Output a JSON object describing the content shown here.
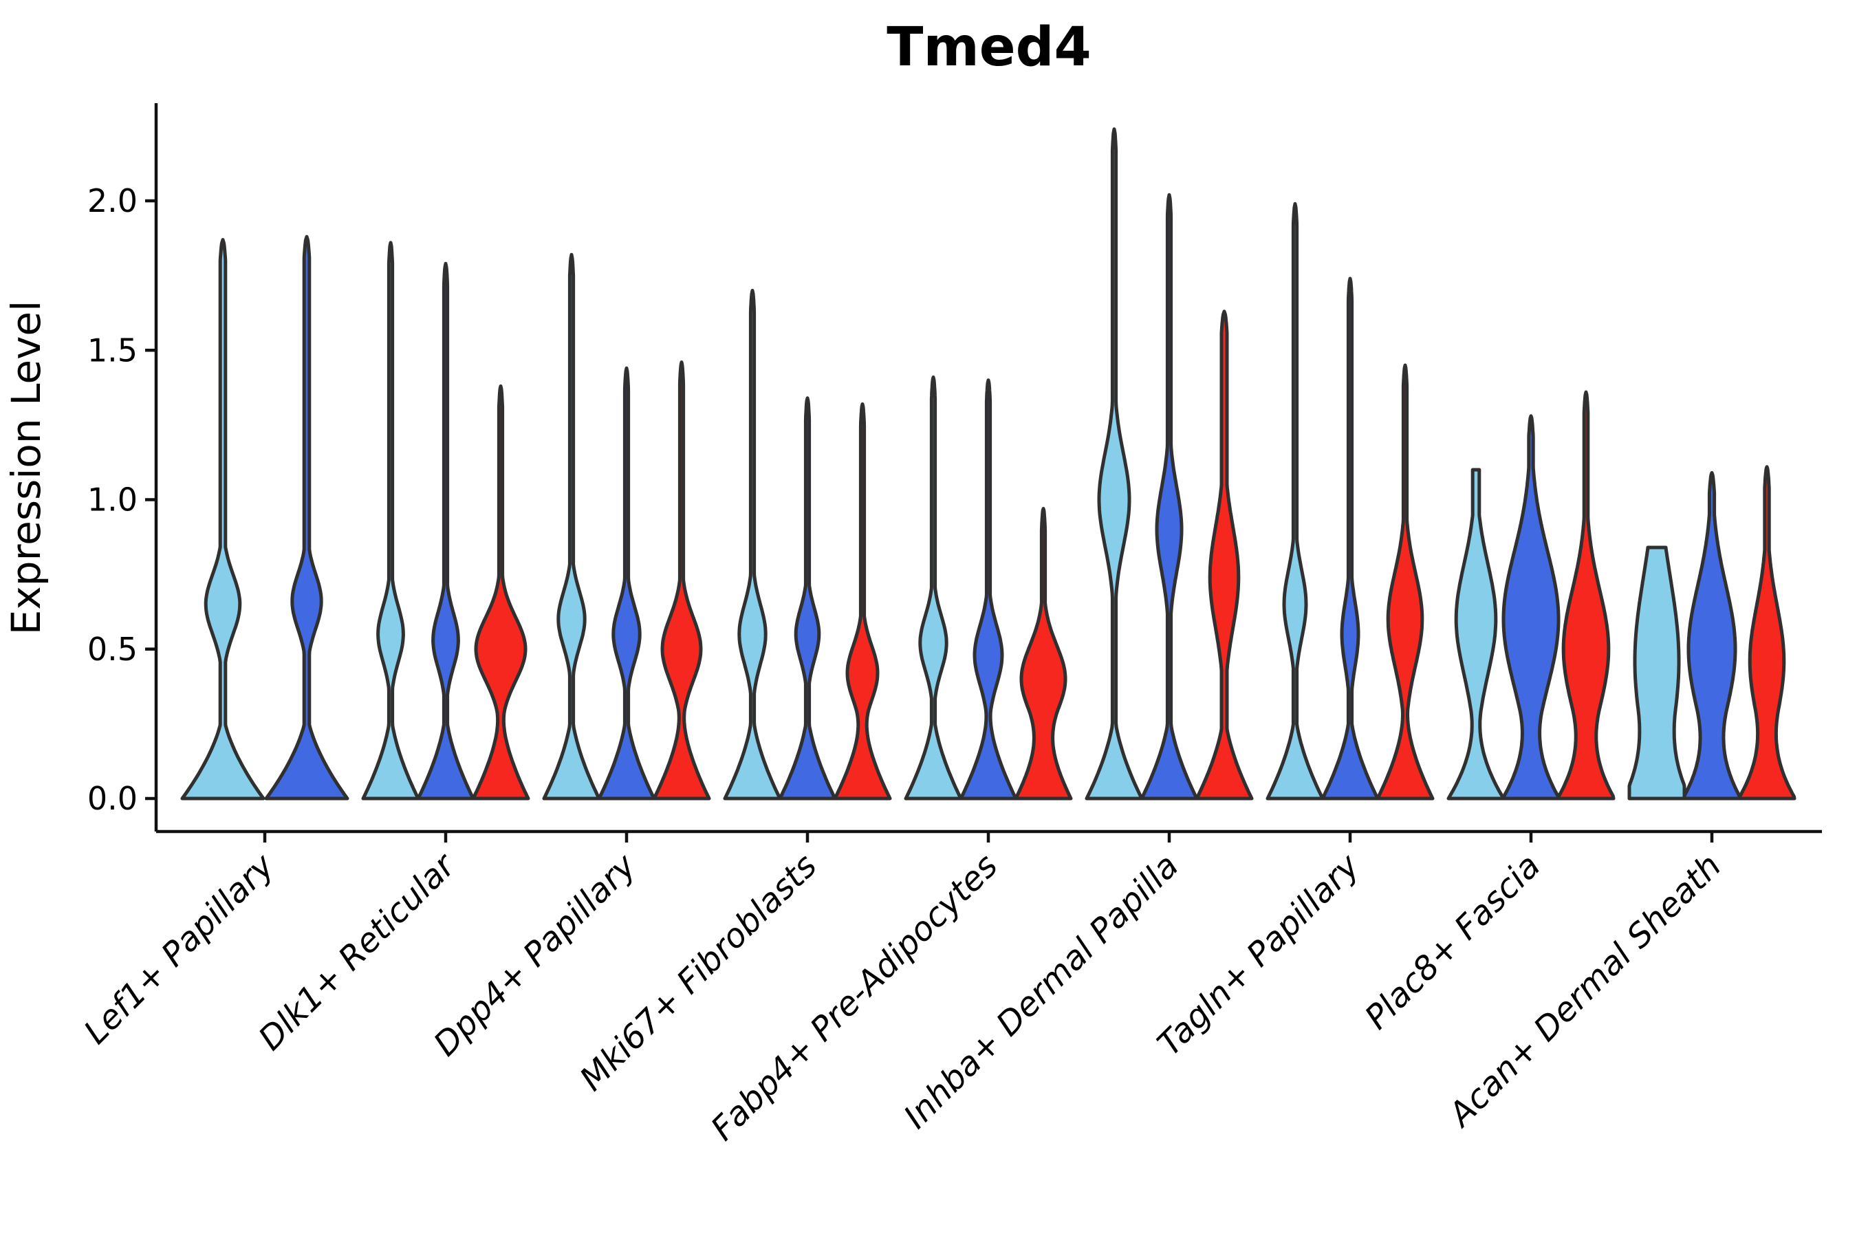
{
  "palette": {
    "light_blue": "#87CEEB",
    "royal_blue": "#4169E1",
    "red": "#F5271F",
    "outline": "#303030",
    "axis": "#111111",
    "text": "#000000"
  },
  "chart_data": {
    "type": "violin",
    "title": "Tmed4",
    "ylabel": "Expression Level",
    "xlabel": "",
    "ylim": [
      -0.11,
      2.43
    ],
    "grid": false,
    "legend": "none",
    "x_label_rotation": 45,
    "yticks": [
      {
        "label": "0.0",
        "value": 0.0
      },
      {
        "label": "0.5",
        "value": 0.5
      },
      {
        "label": "1.0",
        "value": 1.0
      },
      {
        "label": "1.5",
        "value": 1.5
      },
      {
        "label": "2.0",
        "value": 2.0
      }
    ],
    "categories": [
      "Lef1+ Papillary",
      "Dlk1+ Reticular",
      "Dpp4+ Papillary",
      "Mki67+ Fibroblasts",
      "Fabp4+ Pre-Adipocytes",
      "Inhba+ Dermal Papilla",
      "Tagln+ Papillary",
      "Plac8+ Fascia",
      "Acan+ Dermal Sheath"
    ],
    "series_note": "three unlabeled sample series per category, colored light-blue / royal-blue / red; all violins share a zero-anchored base",
    "violins": [
      {
        "cat": 0,
        "slot": 0,
        "color": "light_blue",
        "max": 1.87,
        "c": 0.65,
        "s": 0.14,
        "a": 0.42
      },
      {
        "cat": 0,
        "slot": 1,
        "color": "royal_blue",
        "max": 1.88,
        "c": 0.66,
        "s": 0.13,
        "a": 0.36
      },
      {
        "cat": 1,
        "slot": 0,
        "color": "light_blue",
        "max": 1.86,
        "c": 0.55,
        "s": 0.13,
        "a": 0.46
      },
      {
        "cat": 1,
        "slot": 1,
        "color": "royal_blue",
        "max": 1.79,
        "c": 0.53,
        "s": 0.13,
        "a": 0.46
      },
      {
        "cat": 1,
        "slot": 2,
        "color": "red",
        "max": 1.38,
        "c": 0.5,
        "s": 0.15,
        "a": 0.9
      },
      {
        "cat": 2,
        "slot": 0,
        "color": "light_blue",
        "max": 1.82,
        "c": 0.6,
        "s": 0.13,
        "a": 0.48
      },
      {
        "cat": 2,
        "slot": 1,
        "color": "royal_blue",
        "max": 1.44,
        "c": 0.55,
        "s": 0.13,
        "a": 0.48
      },
      {
        "cat": 2,
        "slot": 2,
        "color": "red",
        "max": 1.46,
        "c": 0.5,
        "s": 0.15,
        "a": 0.7
      },
      {
        "cat": 3,
        "slot": 0,
        "color": "light_blue",
        "max": 1.7,
        "c": 0.55,
        "s": 0.14,
        "a": 0.48
      },
      {
        "cat": 3,
        "slot": 1,
        "color": "royal_blue",
        "max": 1.34,
        "c": 0.55,
        "s": 0.12,
        "a": 0.42
      },
      {
        "cat": 3,
        "slot": 2,
        "color": "red",
        "max": 1.32,
        "c": 0.42,
        "s": 0.13,
        "a": 0.55
      },
      {
        "cat": 4,
        "slot": 0,
        "color": "light_blue",
        "max": 1.41,
        "c": 0.52,
        "s": 0.13,
        "a": 0.48
      },
      {
        "cat": 4,
        "slot": 1,
        "color": "royal_blue",
        "max": 1.4,
        "c": 0.48,
        "s": 0.14,
        "a": 0.5
      },
      {
        "cat": 4,
        "slot": 2,
        "color": "red",
        "max": 0.97,
        "c": 0.4,
        "s": 0.16,
        "a": 0.8
      },
      {
        "cat": 5,
        "slot": 0,
        "color": "light_blue",
        "max": 2.24,
        "c": 1.0,
        "s": 0.22,
        "a": 0.55
      },
      {
        "cat": 5,
        "slot": 1,
        "color": "royal_blue",
        "max": 2.02,
        "c": 0.9,
        "s": 0.2,
        "a": 0.45
      },
      {
        "cat": 5,
        "slot": 2,
        "color": "red",
        "max": 1.63,
        "c": 0.74,
        "s": 0.24,
        "a": 0.52,
        "stem": 0.1
      },
      {
        "cat": 6,
        "slot": 0,
        "color": "light_blue",
        "max": 1.99,
        "c": 0.65,
        "s": 0.16,
        "a": 0.4
      },
      {
        "cat": 6,
        "slot": 1,
        "color": "royal_blue",
        "max": 1.74,
        "c": 0.55,
        "s": 0.15,
        "a": 0.3
      },
      {
        "cat": 6,
        "slot": 2,
        "color": "red",
        "max": 1.45,
        "c": 0.6,
        "s": 0.22,
        "a": 0.62
      },
      {
        "cat": 7,
        "slot": 0,
        "color": "light_blue",
        "max": 1.1,
        "c": 0.6,
        "s": 0.26,
        "a": 0.72,
        "stem": 0.12,
        "flat": true,
        "baseExp": 2.0
      },
      {
        "cat": 7,
        "slot": 1,
        "color": "royal_blue",
        "max": 1.28,
        "c": 0.6,
        "s": 0.32,
        "a": 1.0,
        "stem": 0.08,
        "baseExp": 2.0
      },
      {
        "cat": 7,
        "slot": 2,
        "color": "red",
        "max": 1.36,
        "c": 0.5,
        "s": 0.28,
        "a": 0.82,
        "stem": 0.07,
        "baseExp": 2.0
      },
      {
        "cat": 8,
        "slot": 0,
        "color": "light_blue",
        "max": 0.84,
        "c": 0.46,
        "s": 0.4,
        "a": 0.8,
        "stem": 0.25,
        "flat": true,
        "baseExp": 2.0
      },
      {
        "cat": 8,
        "slot": 1,
        "color": "royal_blue",
        "max": 1.09,
        "c": 0.5,
        "s": 0.3,
        "a": 0.85,
        "stem": 0.09,
        "baseExp": 2.0
      },
      {
        "cat": 8,
        "slot": 2,
        "color": "red",
        "max": 1.11,
        "c": 0.46,
        "s": 0.26,
        "a": 0.62,
        "stem": 0.08,
        "baseExp": 2.0
      }
    ]
  }
}
